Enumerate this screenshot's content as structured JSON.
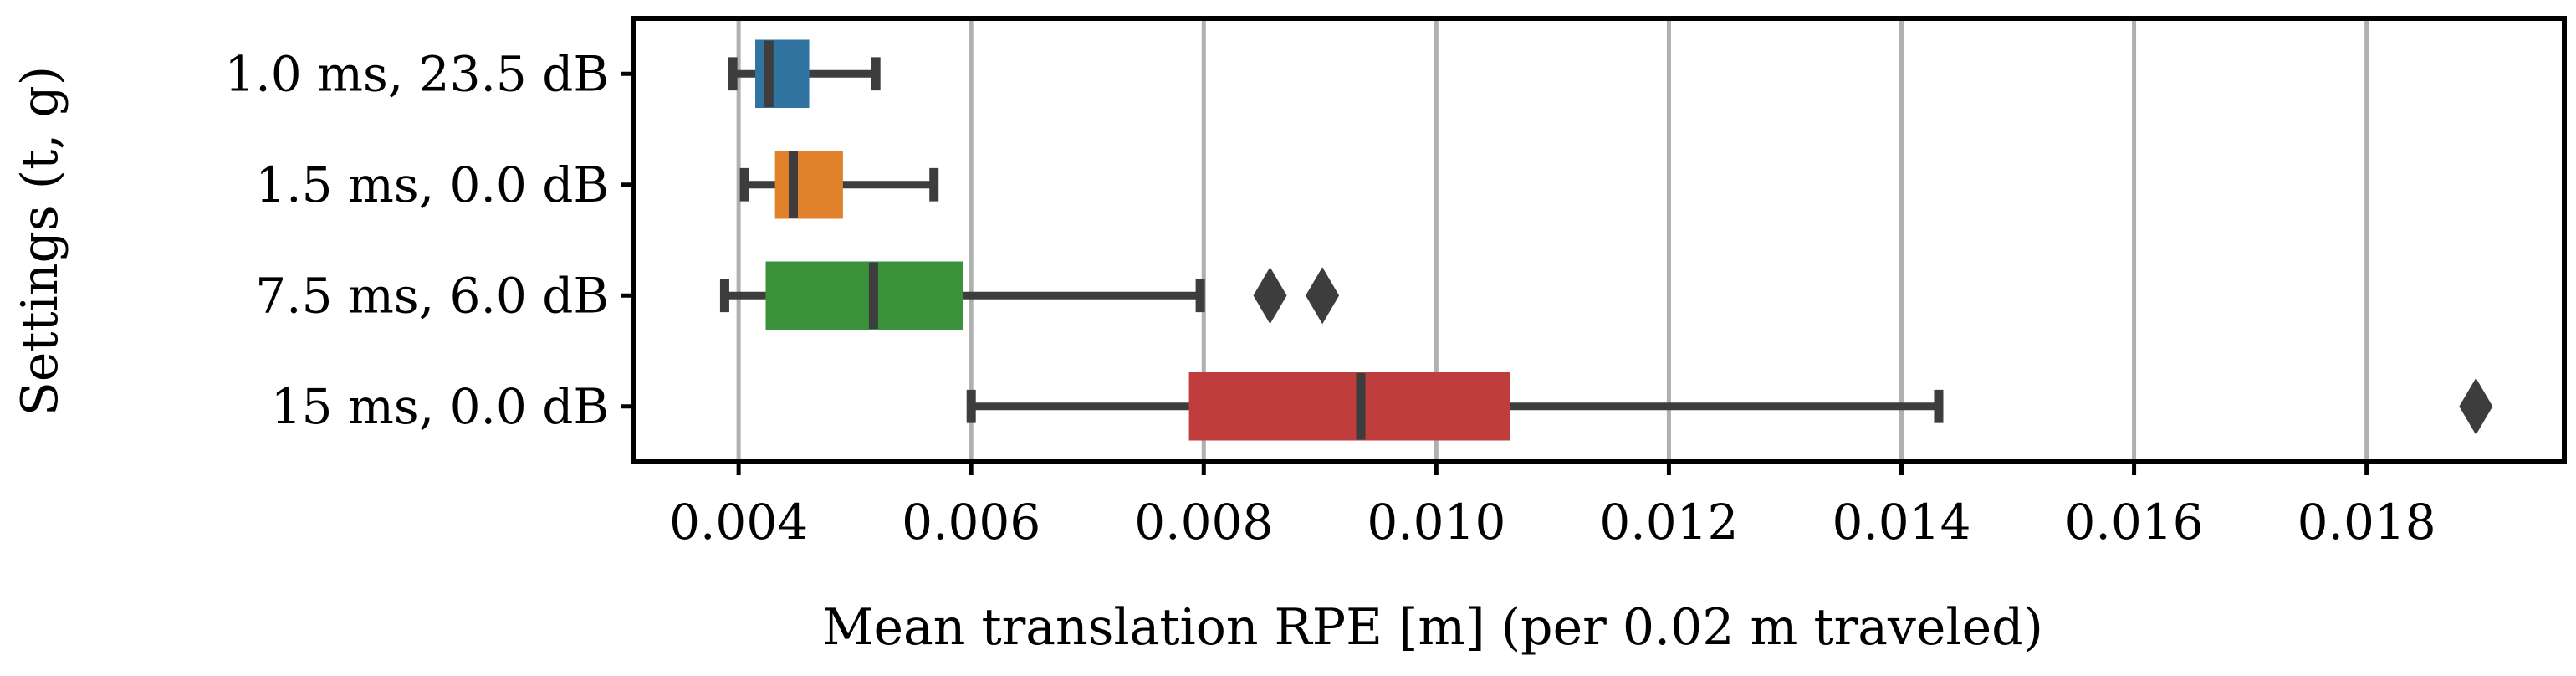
{
  "chart_data": {
    "type": "boxplot",
    "orientation": "horizontal",
    "xlabel": "Mean translation RPE [m] (per 0.02 m traveled)",
    "ylabel": "Settings (t, g)",
    "xlim": [
      0.0031,
      0.0197
    ],
    "xticks": [
      0.004,
      0.006,
      0.008,
      0.01,
      0.012,
      0.014,
      0.016,
      0.018
    ],
    "xtick_labels": [
      "0.004",
      "0.006",
      "0.008",
      "0.010",
      "0.012",
      "0.014",
      "0.016",
      "0.018"
    ],
    "grid": "vertical",
    "legend": "none",
    "categories": [
      "1.0 ms, 23.5 dB",
      "1.5 ms, 0.0 dB",
      "7.5 ms, 6.0 dB",
      "15 ms, 0.0 dB"
    ],
    "boxes": [
      {
        "label": "1.0 ms, 23.5 dB",
        "color": "#3274a1",
        "whisker_low": 0.00395,
        "q1": 0.00415,
        "median": 0.00426,
        "q3": 0.0046,
        "whisker_high": 0.00518,
        "outliers": []
      },
      {
        "label": "1.5 ms, 0.0 dB",
        "color": "#e1812c",
        "whisker_low": 0.00405,
        "q1": 0.00432,
        "median": 0.00447,
        "q3": 0.00489,
        "whisker_high": 0.00568,
        "outliers": []
      },
      {
        "label": "7.5 ms, 6.0 dB",
        "color": "#3a923a",
        "whisker_low": 0.00388,
        "q1": 0.00424,
        "median": 0.00516,
        "q3": 0.00592,
        "whisker_high": 0.00797,
        "outliers": [
          0.00857,
          0.00902
        ]
      },
      {
        "label": "15 ms, 0.0 dB",
        "color": "#c03d3e",
        "whisker_low": 0.006,
        "q1": 0.00788,
        "median": 0.00935,
        "q3": 0.01063,
        "whisker_high": 0.01432,
        "outliers": [
          0.01894
        ]
      }
    ],
    "line_color": "#3d3d3d",
    "grid_color": "#b0b0b0"
  }
}
